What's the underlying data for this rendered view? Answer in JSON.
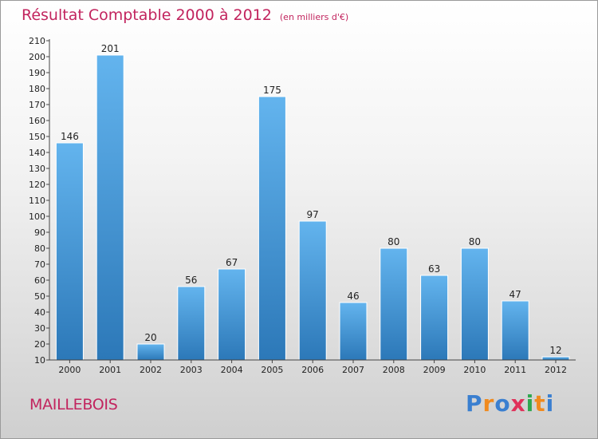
{
  "chart_data": {
    "type": "bar",
    "title": "Résultat Comptable 2000 à 2012",
    "unit": "(en milliers d'€)",
    "categories": [
      "2000",
      "2001",
      "2002",
      "2003",
      "2004",
      "2005",
      "2006",
      "2007",
      "2008",
      "2009",
      "2010",
      "2011",
      "2012"
    ],
    "values": [
      146,
      201,
      20,
      56,
      67,
      175,
      97,
      46,
      80,
      63,
      80,
      47,
      12
    ],
    "xlabel": "",
    "ylabel": "",
    "ylim": [
      10,
      210
    ],
    "ytick_step": 10,
    "grid": false,
    "legend": "none"
  },
  "commune": "MAILLEBOIS",
  "logo": {
    "text": "Proxiti",
    "letters": [
      {
        "ch": "P",
        "color": "#3a7fd0"
      },
      {
        "ch": "r",
        "color": "#f08a1e"
      },
      {
        "ch": "o",
        "color": "#3a7fd0"
      },
      {
        "ch": "x",
        "color": "#e0325a"
      },
      {
        "ch": "i",
        "color": "#2fa84f"
      },
      {
        "ch": "t",
        "color": "#f08a1e"
      },
      {
        "ch": "i",
        "color": "#3a7fd0"
      }
    ]
  },
  "colors": {
    "accent": "#c2245e",
    "bar_top": "#63b4ee",
    "bar_bottom": "#2c78b8",
    "axis": "#444444",
    "text": "#222222"
  }
}
